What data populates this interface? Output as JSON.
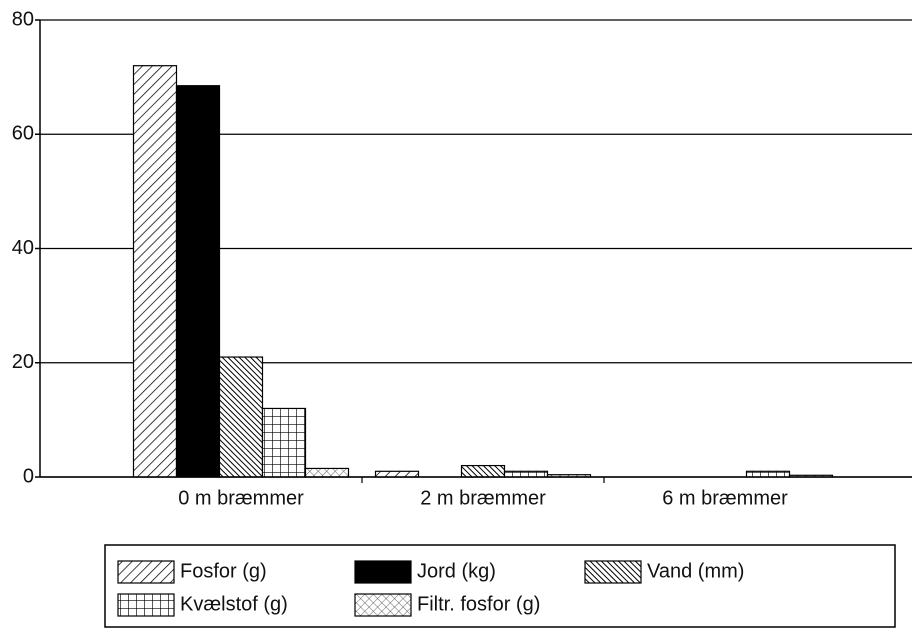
{
  "chart_data": {
    "type": "bar",
    "categories": [
      "0 m bræmmer",
      "2 m bræmmer",
      "6 m bræmmer"
    ],
    "series": [
      {
        "name": "Fosfor (g)",
        "color": "#000000",
        "pattern": "hatch",
        "values": [
          72,
          1,
          0
        ]
      },
      {
        "name": "Jord (kg)",
        "color": "#000000",
        "pattern": "solid",
        "values": [
          68.5,
          0,
          0
        ]
      },
      {
        "name": "Vand (mm)",
        "color": "#000000",
        "pattern": "dense-hatch",
        "values": [
          21,
          2,
          0
        ]
      },
      {
        "name": "Kvælstof (g)",
        "color": "#000000",
        "pattern": "grid",
        "values": [
          12,
          1,
          1
        ]
      },
      {
        "name": "Filtr. fosfor (g)",
        "color": "#000000",
        "pattern": "crosshatch",
        "values": [
          1.5,
          0.4,
          0.3
        ]
      }
    ],
    "ylim": [
      0,
      80
    ],
    "yticks": [
      0,
      20,
      40,
      60,
      80
    ],
    "grid": true,
    "legend": "bottom"
  }
}
